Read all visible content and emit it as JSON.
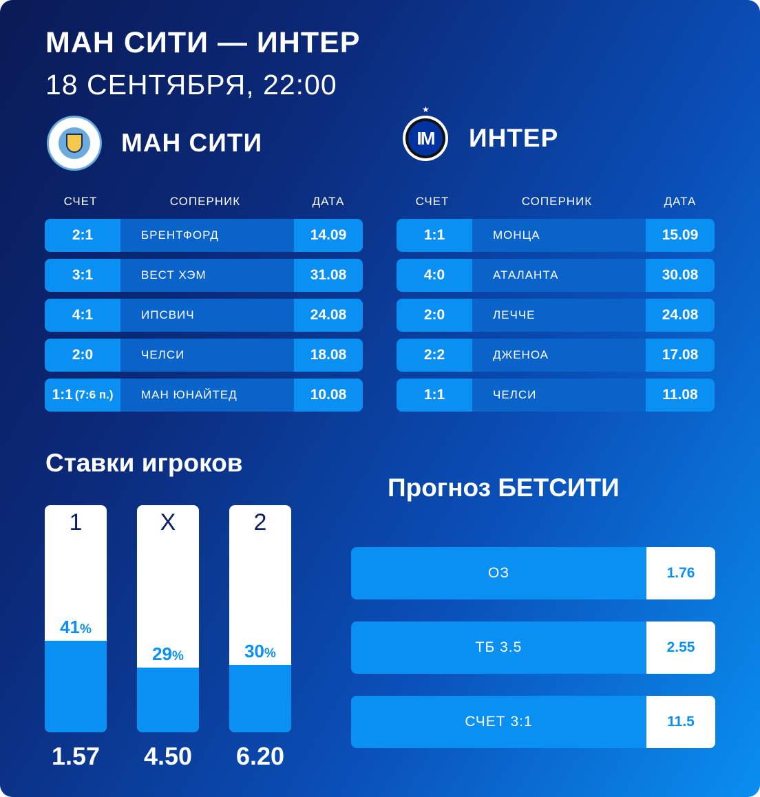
{
  "header": {
    "title": "МАН СИТИ — ИНТЕР",
    "datetime": "18 СЕНТЯБРЯ, 22:00"
  },
  "columns": {
    "score": "СЧЕТ",
    "opponent": "СОПЕРНИК",
    "date": "ДАТА"
  },
  "home": {
    "name": "МАН СИТИ",
    "logo_icon": "manchester-city-crest-icon",
    "matches": [
      {
        "score": "2:1",
        "score_note": "",
        "opponent": "БРЕНТФОРД",
        "date": "14.09"
      },
      {
        "score": "3:1",
        "score_note": "",
        "opponent": "ВЕСТ ХЭМ",
        "date": "31.08"
      },
      {
        "score": "4:1",
        "score_note": "",
        "opponent": "ИПСВИЧ",
        "date": "24.08"
      },
      {
        "score": "2:0",
        "score_note": "",
        "opponent": "ЧЕЛСИ",
        "date": "18.08"
      },
      {
        "score": "1:1",
        "score_note": "(7:6 п.)",
        "opponent": "МАН ЮНАЙТЕД",
        "date": "10.08"
      }
    ]
  },
  "away": {
    "name": "ИНТЕР",
    "logo_icon": "inter-crest-icon",
    "logo_text": "IM",
    "matches": [
      {
        "score": "1:1",
        "opponent": "МОНЦА",
        "date": "15.09"
      },
      {
        "score": "4:0",
        "opponent": "АТАЛАНТА",
        "date": "30.08"
      },
      {
        "score": "2:0",
        "opponent": "ЛЕЧЧЕ",
        "date": "24.08"
      },
      {
        "score": "2:2",
        "opponent": "ДЖЕНОА",
        "date": "17.08"
      },
      {
        "score": "1:1",
        "opponent": "ЧЕЛСИ",
        "date": "11.08"
      }
    ]
  },
  "player_bets": {
    "title": "Ставки игроков",
    "percent_sign": "%",
    "outcomes": [
      {
        "label": "1",
        "percent": 41,
        "odds": "1.57"
      },
      {
        "label": "X",
        "percent": 29,
        "odds": "4.50"
      },
      {
        "label": "2",
        "percent": 30,
        "odds": "6.20"
      }
    ]
  },
  "forecast": {
    "title": "Прогноз БЕТСИТИ",
    "items": [
      {
        "name": "ОЗ",
        "coef": "1.76"
      },
      {
        "name": "ТБ 3.5",
        "coef": "2.55"
      },
      {
        "name": "СЧЕТ 3:1",
        "coef": "11.5"
      }
    ]
  },
  "colors": {
    "accent": "#0a8ff2",
    "row_mid": "#0a63c8",
    "bg_dark": "#0a1a55"
  }
}
